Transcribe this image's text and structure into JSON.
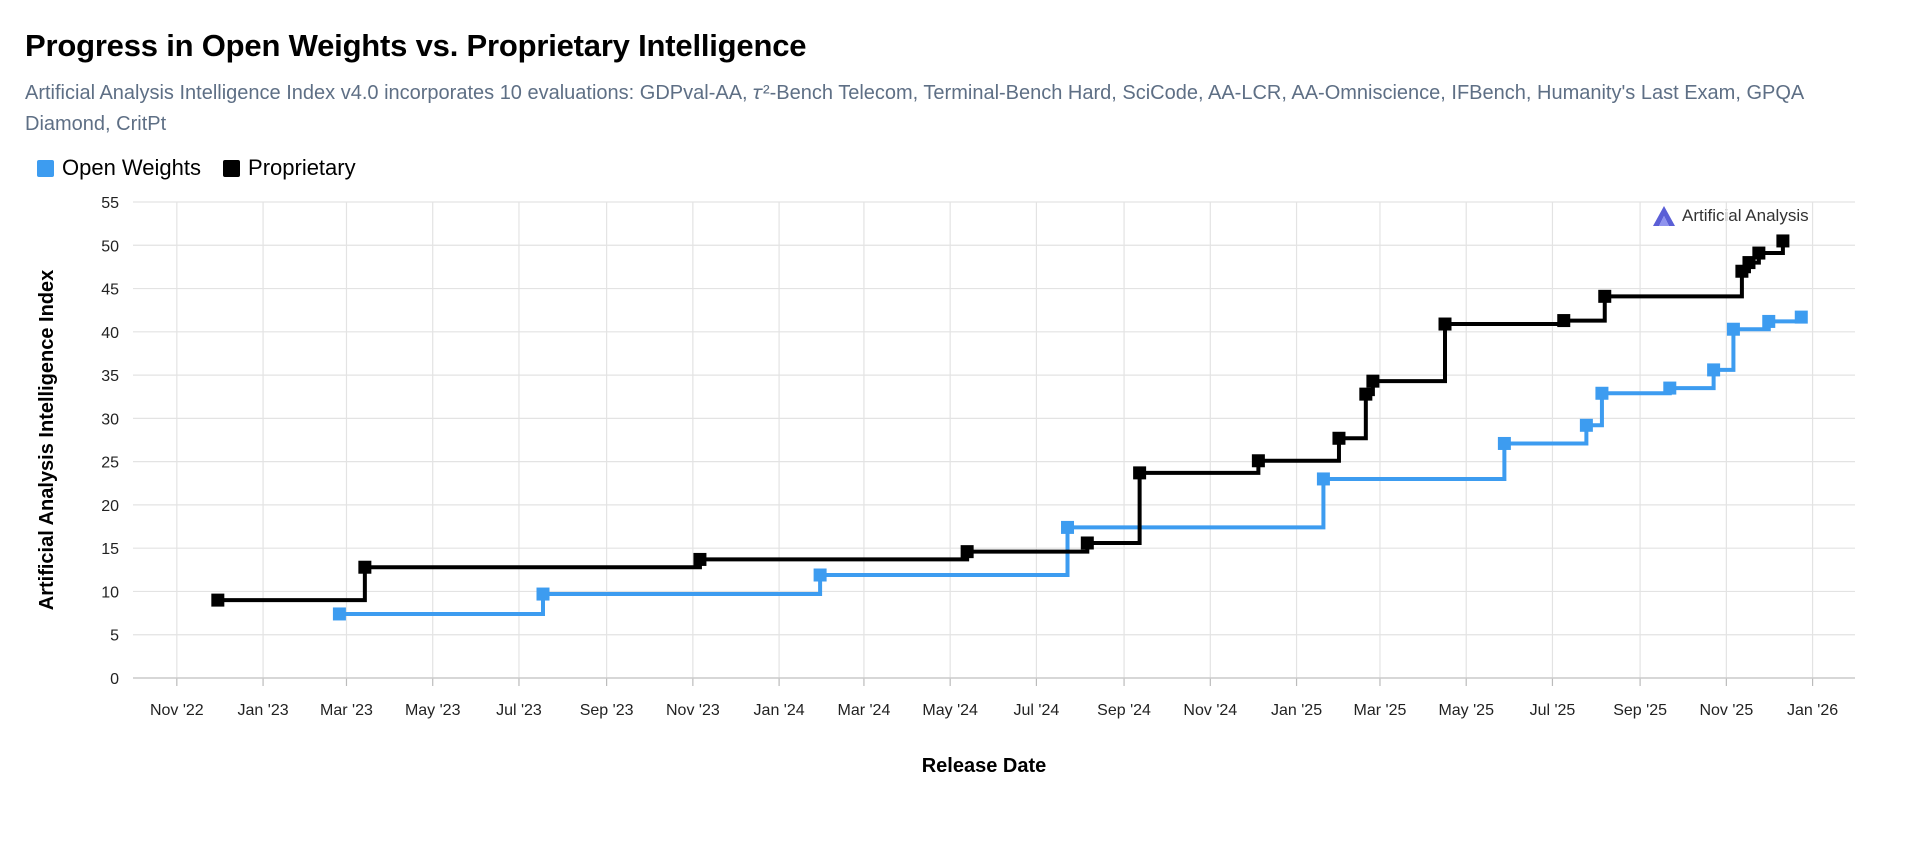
{
  "header": {
    "title": "Progress in Open Weights vs. Proprietary Intelligence",
    "subtitle": "Artificial Analysis Intelligence Index v4.0 incorporates 10 evaluations: GDPval-AA, 𝜏²-Bench Telecom, Terminal-Bench Hard, SciCode, AA-LCR, AA-Omniscience, IFBench, Humanity's Last Exam, GPQA Diamond, CritPt"
  },
  "brand": {
    "label": "Artificial Analysis",
    "icon": "artificial-analysis-logo-icon"
  },
  "chart_data": {
    "type": "line",
    "step": true,
    "xlabel": "Release Date",
    "ylabel": "Artificial Analysis Intelligence Index",
    "ylim": [
      0,
      55
    ],
    "yticks": [
      0,
      5,
      10,
      15,
      20,
      25,
      30,
      35,
      40,
      45,
      50,
      55
    ],
    "xlim": [
      "2022-10-01",
      "2026-01-31"
    ],
    "xticks": [
      {
        "date": "2022-11-01",
        "label": "Nov '22"
      },
      {
        "date": "2023-01-01",
        "label": "Jan '23"
      },
      {
        "date": "2023-03-01",
        "label": "Mar '23"
      },
      {
        "date": "2023-05-01",
        "label": "May '23"
      },
      {
        "date": "2023-07-01",
        "label": "Jul '23"
      },
      {
        "date": "2023-09-01",
        "label": "Sep '23"
      },
      {
        "date": "2023-11-01",
        "label": "Nov '23"
      },
      {
        "date": "2024-01-01",
        "label": "Jan '24"
      },
      {
        "date": "2024-03-01",
        "label": "Mar '24"
      },
      {
        "date": "2024-05-01",
        "label": "May '24"
      },
      {
        "date": "2024-07-01",
        "label": "Jul '24"
      },
      {
        "date": "2024-09-01",
        "label": "Sep '24"
      },
      {
        "date": "2024-11-01",
        "label": "Nov '24"
      },
      {
        "date": "2025-01-01",
        "label": "Jan '25"
      },
      {
        "date": "2025-03-01",
        "label": "Mar '25"
      },
      {
        "date": "2025-05-01",
        "label": "May '25"
      },
      {
        "date": "2025-07-01",
        "label": "Jul '25"
      },
      {
        "date": "2025-09-01",
        "label": "Sep '25"
      },
      {
        "date": "2025-11-01",
        "label": "Nov '25"
      },
      {
        "date": "2026-01-01",
        "label": "Jan '26"
      }
    ],
    "grid": true,
    "legend_position": "top-left",
    "series": [
      {
        "name": "Open Weights",
        "color": "#3d9cf0",
        "points": [
          {
            "x": "2023-02-24",
            "y": 7.4
          },
          {
            "x": "2023-07-18",
            "y": 9.7
          },
          {
            "x": "2024-01-30",
            "y": 11.9
          },
          {
            "x": "2024-07-23",
            "y": 17.4
          },
          {
            "x": "2025-01-20",
            "y": 23.0
          },
          {
            "x": "2025-05-28",
            "y": 27.1
          },
          {
            "x": "2025-07-25",
            "y": 29.2
          },
          {
            "x": "2025-08-05",
            "y": 32.9
          },
          {
            "x": "2025-09-22",
            "y": 33.5
          },
          {
            "x": "2025-10-23",
            "y": 35.6
          },
          {
            "x": "2025-11-06",
            "y": 40.3
          },
          {
            "x": "2025-12-01",
            "y": 41.2
          },
          {
            "x": "2025-12-24",
            "y": 41.7
          }
        ]
      },
      {
        "name": "Proprietary",
        "color": "#000000",
        "points": [
          {
            "x": "2022-11-30",
            "y": 9.0
          },
          {
            "x": "2023-03-14",
            "y": 12.8
          },
          {
            "x": "2023-11-06",
            "y": 13.7
          },
          {
            "x": "2024-05-13",
            "y": 14.6
          },
          {
            "x": "2024-08-06",
            "y": 15.6
          },
          {
            "x": "2024-09-12",
            "y": 23.7
          },
          {
            "x": "2024-12-05",
            "y": 25.1
          },
          {
            "x": "2025-01-31",
            "y": 27.7
          },
          {
            "x": "2025-02-19",
            "y": 32.8
          },
          {
            "x": "2025-02-24",
            "y": 34.3
          },
          {
            "x": "2025-04-16",
            "y": 40.9
          },
          {
            "x": "2025-07-09",
            "y": 41.3
          },
          {
            "x": "2025-08-07",
            "y": 44.1
          },
          {
            "x": "2025-11-12",
            "y": 47.0
          },
          {
            "x": "2025-11-17",
            "y": 48.0
          },
          {
            "x": "2025-11-24",
            "y": 49.1
          },
          {
            "x": "2025-12-11",
            "y": 50.5
          }
        ]
      }
    ]
  }
}
